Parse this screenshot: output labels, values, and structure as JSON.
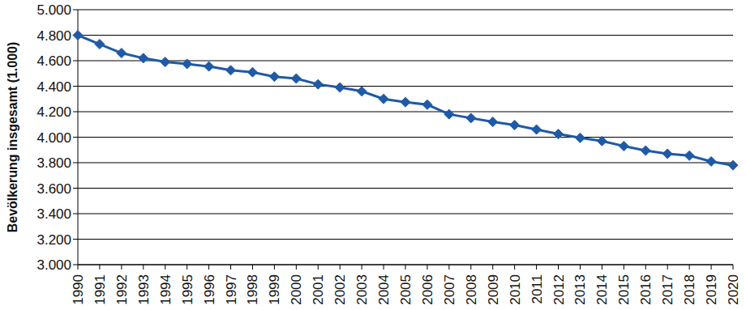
{
  "chart_data": {
    "type": "line",
    "y_label": "Bevölkerung insgesamt (1.000)",
    "categories": [
      "1990",
      "1991",
      "1992",
      "1993",
      "1994",
      "1995",
      "1996",
      "1997",
      "1998",
      "1999",
      "2000",
      "2001",
      "2002",
      "2003",
      "2004",
      "2005",
      "2006",
      "2007",
      "2008",
      "2009",
      "2010",
      "2011",
      "2012",
      "2013",
      "2014",
      "2015",
      "2016",
      "2017",
      "2018",
      "2019",
      "2020"
    ],
    "values": [
      4800,
      4730,
      4660,
      4620,
      4590,
      4575,
      4555,
      4525,
      4510,
      4475,
      4460,
      4415,
      4390,
      4360,
      4300,
      4275,
      4255,
      4180,
      4150,
      4120,
      4095,
      4060,
      4025,
      3995,
      3970,
      3930,
      3895,
      3870,
      3855,
      3810,
      3780
    ],
    "color": "#1f5aa6",
    "marker": "diamond",
    "ylim": [
      3000,
      5000
    ],
    "yticks": [
      {
        "value": 3000,
        "label": "3.000"
      },
      {
        "value": 3200,
        "label": "3.200"
      },
      {
        "value": 3400,
        "label": "3.400"
      },
      {
        "value": 3600,
        "label": "3.600"
      },
      {
        "value": 3800,
        "label": "3.800"
      },
      {
        "value": 4000,
        "label": "4.000"
      },
      {
        "value": 4200,
        "label": "4.200"
      },
      {
        "value": 4400,
        "label": "4.400"
      },
      {
        "value": 4600,
        "label": "4.600"
      },
      {
        "value": 4800,
        "label": "4.800"
      },
      {
        "value": 5000,
        "label": "5.000"
      }
    ],
    "grid": true
  }
}
